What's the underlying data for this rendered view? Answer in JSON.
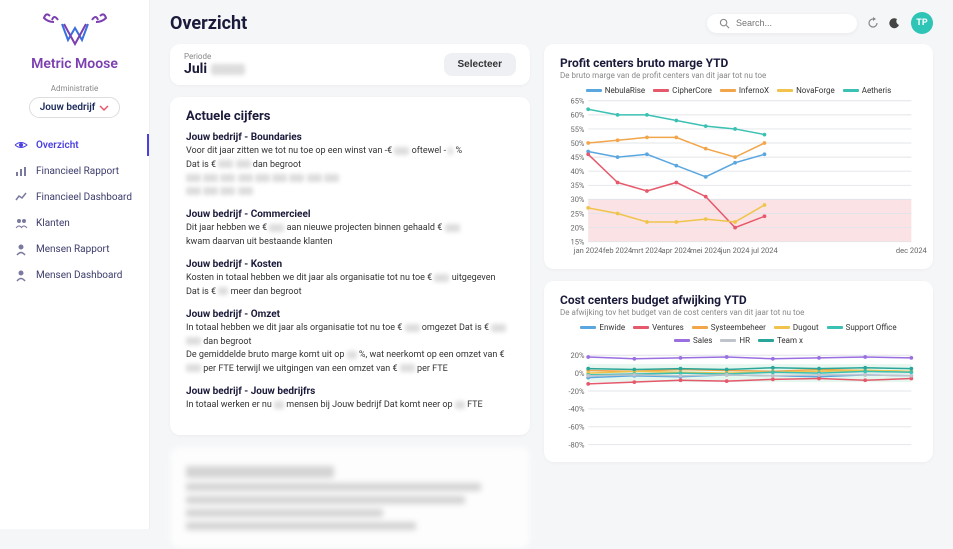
{
  "brand": "Metric Moose",
  "admin_label": "Administratie",
  "company_name": "Jouw bedrijf",
  "nav": [
    {
      "label": "Overzicht",
      "icon": "eye",
      "active": true
    },
    {
      "label": "Financieel Rapport",
      "icon": "bars",
      "active": false
    },
    {
      "label": "Financieel Dashboard",
      "icon": "line",
      "active": false
    },
    {
      "label": "Klanten",
      "icon": "users",
      "active": false
    },
    {
      "label": "Mensen Rapport",
      "icon": "person",
      "active": false
    },
    {
      "label": "Mensen Dashboard",
      "icon": "person",
      "active": false
    }
  ],
  "page_title": "Overzicht",
  "search_placeholder": "Search...",
  "avatar_initials": "TP",
  "period": {
    "label": "Periode",
    "month": "Juli",
    "select_label": "Selecteer"
  },
  "actuele": {
    "title": "Actuele cijfers",
    "blocks": [
      {
        "title": "Jouw bedrijf - Boundaries",
        "lines": [
          "Voor dit jaar zitten we tot nu toe op een winst van -€ ███ oftewel - █ %",
          "Dat is € ███ ███ dan begroot",
          "███ ███ ███ ███ ███ ███ ███ ███ ███",
          "███ ███ ███ ███"
        ]
      },
      {
        "title": "Jouw bedrijf - Commercieel",
        "lines": [
          "Dit jaar hebben we € ███ aan nieuwe projecten binnen gehaald  € ███",
          "kwam daarvan uit bestaande klanten"
        ]
      },
      {
        "title": "Jouw bedrijf - Kosten",
        "lines": [
          "Kosten in totaal hebben we dit jaar als organisatie tot nu toe € ███ uitgegeven",
          "Dat is € ██ meer dan begroot"
        ]
      },
      {
        "title": "Jouw bedrijf - Omzet",
        "lines": [
          "In totaal hebben we dit jaar als organisatie tot nu toe € ███ omgezet  Dat is € ███ ███ dan begroot",
          "De gemiddelde bruto marge komt uit op ██ %, wat neerkomt op een omzet van € ███ per FTE terwijl we uitgingen van een omzet van € ███ per FTE"
        ]
      },
      {
        "title": "Jouw bedrijf - Jouw bedrijfrs",
        "lines": [
          "In totaal werken er nu ██ mensen bij Jouw bedrijf  Dat komt neer op ██ FTE"
        ]
      }
    ]
  },
  "chart1": {
    "title": "Profit centers bruto marge YTD",
    "subtitle": "De bruto marge van de profit centers van dit jaar tot nu toe",
    "type": "line",
    "x_labels": [
      "jan 2024",
      "feb 2024",
      "mrt 2024",
      "apr 2024",
      "mei 2024",
      "jun 2024",
      "jul 2024",
      "dec 2024"
    ],
    "x_positions": [
      0,
      1,
      2,
      3,
      4,
      5,
      6,
      11
    ],
    "x_max": 11,
    "ymin": 15,
    "ymax": 65,
    "ytick_step": 5,
    "band": {
      "from": 15,
      "to": 30,
      "color": "#fbe3e5"
    },
    "label_fontsize": 8,
    "background": "#ffffff",
    "grid_color": "#e2e4ea",
    "series": [
      {
        "name": "NebulaRise",
        "color": "#5aa7e0",
        "values": [
          47,
          45,
          46,
          42,
          38,
          43,
          46,
          null
        ]
      },
      {
        "name": "CipherCore",
        "color": "#e6586b",
        "values": [
          46,
          36,
          33,
          36,
          31,
          20,
          24,
          null
        ]
      },
      {
        "name": "InfernoX",
        "color": "#f2a54a",
        "values": [
          50,
          51,
          52,
          52,
          48,
          45,
          50,
          null
        ]
      },
      {
        "name": "NovaForge",
        "color": "#f0c44c",
        "values": [
          27,
          25,
          22,
          22,
          23,
          22,
          28,
          null
        ]
      },
      {
        "name": "Aetheris",
        "color": "#3bc1b3",
        "values": [
          62,
          60,
          60,
          58,
          56,
          55,
          53,
          null
        ]
      }
    ]
  },
  "chart2": {
    "title": "Cost centers budget afwijking YTD",
    "subtitle": "De afwijking tov het budget van de cost centers van dit jaar tot nu toe",
    "type": "line",
    "ymin": -80,
    "ymax": 25,
    "ytick_step": 20,
    "yticks": [
      20,
      0,
      -20,
      -40,
      -60,
      -80
    ],
    "x_count": 8,
    "band": {
      "from": -10,
      "to": 10,
      "color": "#e6f7ef"
    },
    "label_fontsize": 8,
    "background": "#ffffff",
    "grid_color": "#e2e4ea",
    "series": [
      {
        "name": "Enwide",
        "color": "#5aa7e0",
        "values": [
          -5,
          -3,
          -4,
          -2,
          -3,
          -4,
          -2,
          -3
        ]
      },
      {
        "name": "Ventures",
        "color": "#e6586b",
        "values": [
          -12,
          -10,
          -8,
          -9,
          -7,
          -6,
          -8,
          -6
        ]
      },
      {
        "name": "Systeembeheer",
        "color": "#f2a54a",
        "values": [
          3,
          2,
          4,
          3,
          2,
          4,
          3,
          2
        ]
      },
      {
        "name": "Dugout",
        "color": "#f0c44c",
        "values": [
          0,
          2,
          1,
          0,
          1,
          2,
          3,
          2
        ]
      },
      {
        "name": "Support Office",
        "color": "#3bc1b3",
        "values": [
          -2,
          -1,
          0,
          -1,
          1,
          0,
          2,
          1
        ]
      },
      {
        "name": "Sales",
        "color": "#9a6fe0",
        "values": [
          18,
          16,
          17,
          18,
          16,
          17,
          18,
          17
        ]
      },
      {
        "name": "HR",
        "color": "#bfc3cb",
        "values": [
          -3,
          -2,
          -3,
          -2,
          -3,
          -2,
          -2,
          -3
        ]
      },
      {
        "name": "Team x",
        "color": "#2aa59a",
        "values": [
          5,
          4,
          5,
          4,
          6,
          5,
          6,
          5
        ]
      }
    ]
  }
}
